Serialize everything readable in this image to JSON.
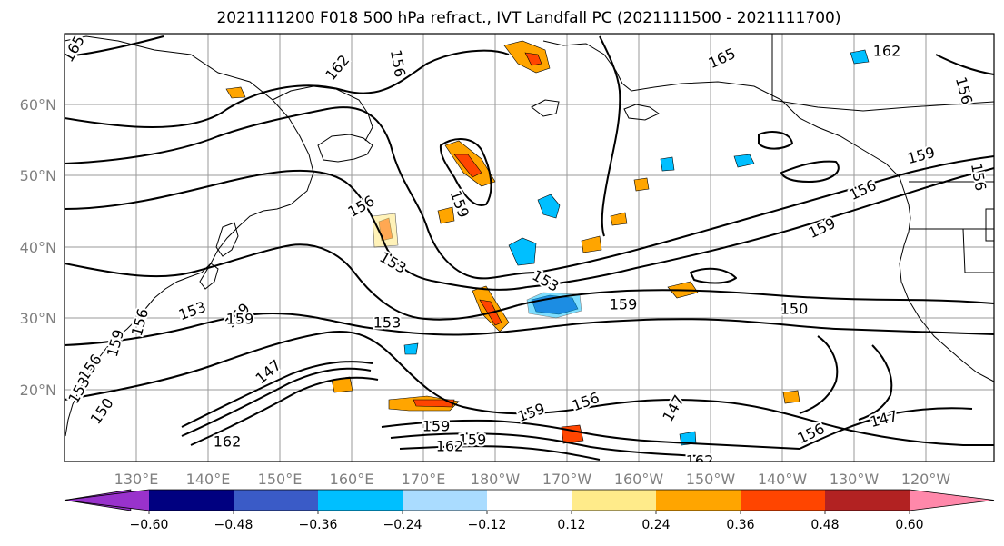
{
  "title": "2021111200 F018 500 hPa refract., IVT Landfall PC (2021111500 - 2021111700)",
  "map": {
    "lon_labels": [
      "130°E",
      "140°E",
      "150°E",
      "160°E",
      "170°E",
      "180°W",
      "170°W",
      "160°W",
      "150°W",
      "140°W",
      "130°W",
      "120°W"
    ],
    "lat_labels": [
      "60°N",
      "50°N",
      "40°N",
      "30°N",
      "20°N"
    ],
    "gridlines": true,
    "contour_labels": [
      {
        "id": "c-165-a",
        "text": "165"
      },
      {
        "id": "c-162-a",
        "text": "162"
      },
      {
        "id": "c-156-a",
        "text": "156"
      },
      {
        "id": "c-165-b",
        "text": "165"
      },
      {
        "id": "c-162-b",
        "text": "162"
      },
      {
        "id": "c-156-b",
        "text": "156"
      },
      {
        "id": "c-156-c",
        "text": "156"
      },
      {
        "id": "c-153-a",
        "text": "153"
      },
      {
        "id": "c-153-b",
        "text": "153"
      },
      {
        "id": "c-153-c",
        "text": "153"
      },
      {
        "id": "c-159-a",
        "text": "159"
      },
      {
        "id": "c-159-b",
        "text": "159"
      },
      {
        "id": "c-150-a",
        "text": "150"
      },
      {
        "id": "c-156-d",
        "text": "156"
      },
      {
        "id": "c-159-c",
        "text": "159"
      },
      {
        "id": "c-159-d",
        "text": "159"
      },
      {
        "id": "c-156-e",
        "text": "156"
      },
      {
        "id": "c-159-e",
        "text": "159"
      },
      {
        "id": "c-156-f",
        "text": "156"
      },
      {
        "id": "c-159-f",
        "text": "159"
      },
      {
        "id": "c-153-d",
        "text": "153"
      },
      {
        "id": "c-159-g",
        "text": "159"
      },
      {
        "id": "c-147-a",
        "text": "147"
      },
      {
        "id": "c-156-g",
        "text": "156"
      },
      {
        "id": "c-153-e",
        "text": "153"
      },
      {
        "id": "c-150-b",
        "text": "150"
      },
      {
        "id": "c-162-c",
        "text": "162"
      },
      {
        "id": "c-159-h",
        "text": "159"
      },
      {
        "id": "c-159-i",
        "text": "159"
      },
      {
        "id": "c-156-h",
        "text": "156"
      },
      {
        "id": "c-147-b",
        "text": "147"
      },
      {
        "id": "c-162-d",
        "text": "162"
      },
      {
        "id": "c-156-i",
        "text": "156"
      },
      {
        "id": "c-147-c",
        "text": "147"
      },
      {
        "id": "c-159-j",
        "text": "159"
      },
      {
        "id": "c-162-e",
        "text": "162"
      }
    ]
  },
  "colorbar": {
    "colors": [
      "#9932cc",
      "#000080",
      "#3a5bc7",
      "#00bfff",
      "#aadcff",
      "#ffffff",
      "#ffeb8a",
      "#ffa500",
      "#ff4500",
      "#b22222",
      "#ff88aa"
    ],
    "tick_labels": [
      "-0.60",
      "-0.48",
      "-0.36",
      "-0.24",
      "-0.12",
      "0.12",
      "0.24",
      "0.36",
      "0.48",
      "0.60"
    ],
    "extend": "both"
  }
}
